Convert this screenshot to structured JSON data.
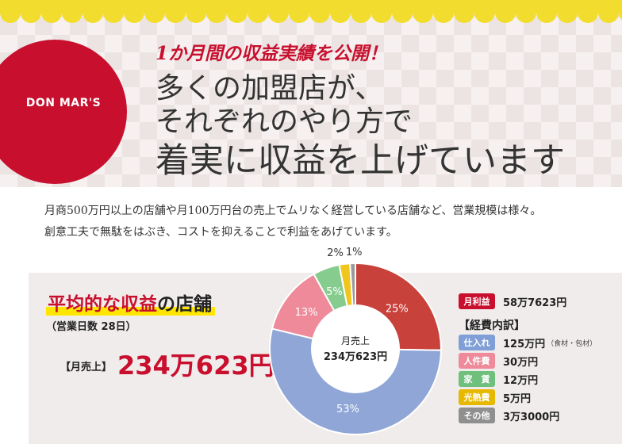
{
  "hero": {
    "brand": "DON MAR'S",
    "kicker": "1か月間の収益実績を公開！",
    "headline_lines": [
      "多くの加盟店が、",
      "それぞれのやり方で",
      "着実に収益を上げています"
    ]
  },
  "description": [
    "月商500万円以上の店舗や月100万円台の売上でムリなく経営している店舗など、営業規模は様々。",
    "創意工夫で無駄をはぶき、コストを抑えることで利益をあげています。"
  ],
  "panel": {
    "title_highlight": "平均的な収益",
    "title_rest": "の店舗",
    "days": "（営業日数 28日）",
    "revenue_label": "【月売上】",
    "revenue_value": "234万623円"
  },
  "legend": {
    "profit_label": "月利益",
    "profit_value": "58万7623円",
    "breakdown_title": "【経費内訳】",
    "items": [
      {
        "label": "仕入れ",
        "value": "125万円",
        "note": "（食材・包材）"
      },
      {
        "label": "人件費",
        "value": "30万円"
      },
      {
        "label": "家　賃",
        "value": "12万円"
      },
      {
        "label": "光熱費",
        "value": "5万円"
      },
      {
        "label": "その他",
        "value": "3万3000円"
      }
    ]
  },
  "chart_data": {
    "type": "pie",
    "center_label": [
      "月売上",
      "234万623円"
    ],
    "slices": [
      {
        "label": "25%",
        "value": 25,
        "color": "#c8413a"
      },
      {
        "label": "53%",
        "value": 53,
        "color": "#8fa6d6"
      },
      {
        "label": "13%",
        "value": 13,
        "color": "#ee8a9a"
      },
      {
        "label": "5%",
        "value": 5,
        "color": "#86cc8e"
      },
      {
        "label": "2%",
        "value": 2,
        "color": "#f0c51e"
      },
      {
        "label": "1%",
        "value": 1,
        "color": "#9a9a9a"
      }
    ]
  },
  "colors": {
    "accent": "#c8102e",
    "banner_yellow": "#f2dd2f",
    "highlight": "#ffe600"
  }
}
